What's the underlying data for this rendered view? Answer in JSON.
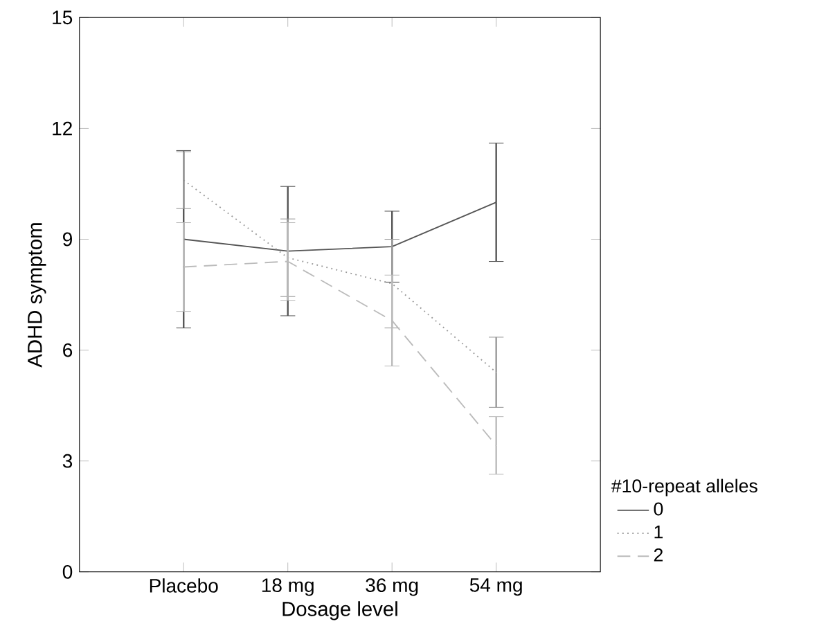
{
  "chart_data": {
    "type": "line",
    "xlabel": "Dosage level",
    "ylabel": "ADHD symptom",
    "legend_title": "#10-repeat alleles",
    "categories": [
      "Placebo",
      "18 mg",
      "36 mg",
      "54 mg"
    ],
    "series": [
      {
        "name": "0",
        "color": "#555555",
        "line_style": "solid",
        "values": [
          9.0,
          8.68,
          8.8,
          10.0
        ],
        "errors": [
          2.4,
          1.75,
          0.96,
          1.6
        ]
      },
      {
        "name": "1",
        "color": "#999999",
        "line_style": "dotted",
        "values": [
          10.6,
          8.5,
          7.8,
          5.4
        ],
        "errors": [
          0.77,
          1.05,
          1.2,
          0.95
        ]
      },
      {
        "name": "2",
        "color": "#bbbbbb",
        "line_style": "dashed",
        "values": [
          8.25,
          8.4,
          6.8,
          3.42
        ],
        "errors": [
          1.2,
          1.05,
          1.23,
          0.78
        ]
      }
    ],
    "ylim": [
      0,
      15
    ],
    "yticks": [
      0,
      3,
      6,
      9,
      12,
      15
    ],
    "grid": false,
    "legend": "right",
    "marker": "none"
  }
}
